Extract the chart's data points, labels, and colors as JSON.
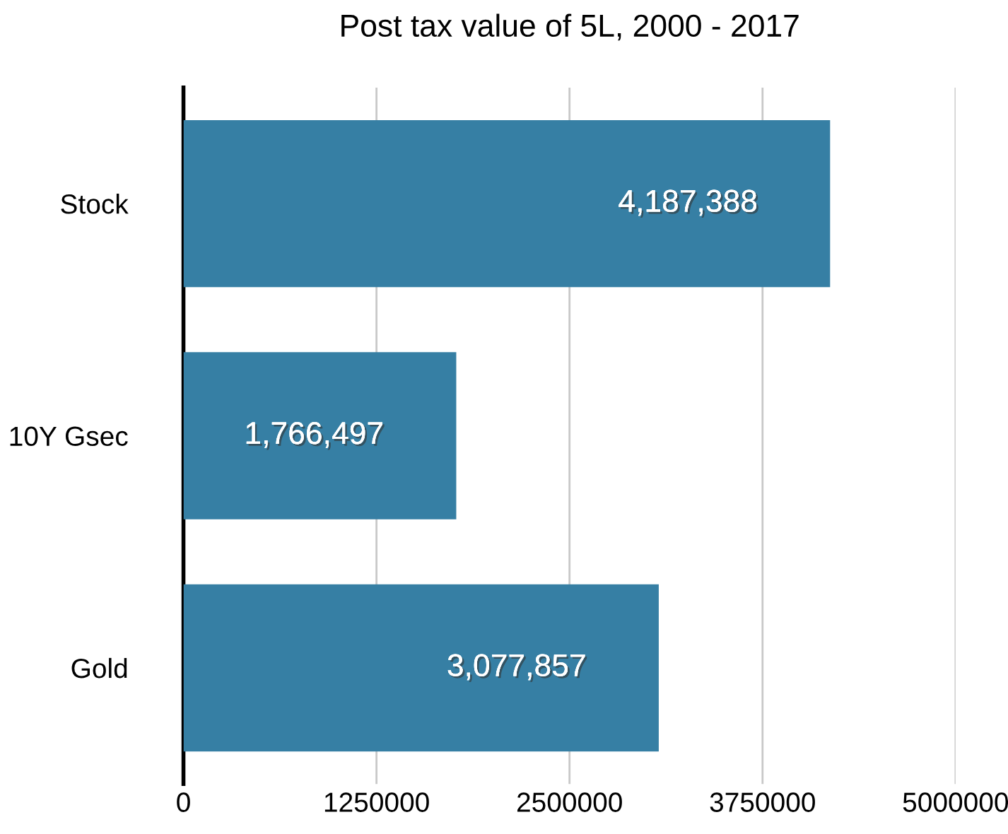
{
  "chart_data": {
    "type": "bar",
    "orientation": "horizontal",
    "title": "Post tax value of 5L, 2000 - 2017",
    "categories": [
      "Stock",
      "10Y Gsec",
      "Gold"
    ],
    "values": [
      4187388,
      1766497,
      3077857
    ],
    "value_labels": [
      "4,187,388",
      "1,766,497",
      "3,077,857"
    ],
    "color": "#367fa4",
    "xlim": [
      0,
      5000000
    ],
    "xticks": [
      0,
      1250000,
      2500000,
      3750000,
      5000000
    ],
    "grid": "x",
    "legend": false
  }
}
